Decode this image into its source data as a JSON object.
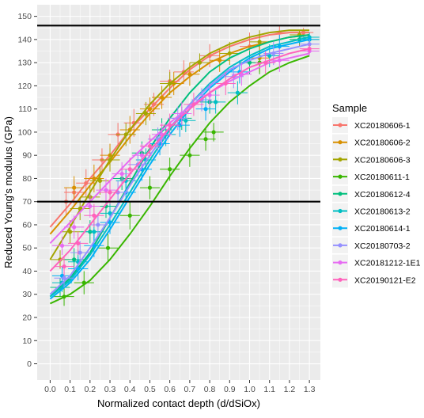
{
  "chart_data": {
    "type": "scatter",
    "title": "",
    "xlabel": "Normalized contact depth (d/dSiOx)",
    "ylabel": "Reduced Young's modulus (GPa)",
    "xlim": [
      -0.065,
      1.355
    ],
    "ylim": [
      -7,
      155
    ],
    "x_ticks": [
      "0.0",
      "0.1",
      "0.2",
      "0.3",
      "0.4",
      "0.5",
      "0.6",
      "0.7",
      "0.8",
      "0.9",
      "1.0",
      "1.1",
      "1.2",
      "1.3"
    ],
    "y_ticks": [
      "0",
      "10",
      "20",
      "30",
      "40",
      "50",
      "60",
      "70",
      "80",
      "90",
      "100",
      "110",
      "120",
      "130",
      "140",
      "150"
    ],
    "grid": true,
    "background": "#ebebeb",
    "grid_color": "#ffffff",
    "reference_lines": [
      70,
      146
    ],
    "legend": {
      "title": "Sample",
      "position": "right"
    },
    "series": [
      {
        "name": "XC20180606-1",
        "color": "#f8766d",
        "points": [
          [
            0.08,
            70,
            6
          ],
          [
            0.12,
            74,
            5
          ],
          [
            0.18,
            78,
            6
          ],
          [
            0.26,
            88,
            5
          ],
          [
            0.34,
            99,
            5
          ],
          [
            0.42,
            104,
            6
          ],
          [
            0.52,
            112,
            5
          ],
          [
            0.6,
            122,
            5
          ],
          [
            0.67,
            126,
            5
          ],
          [
            0.8,
            133,
            5
          ],
          [
            1.0,
            137,
            6
          ],
          [
            1.15,
            143,
            3
          ],
          [
            1.27,
            143,
            2
          ]
        ],
        "curve": [
          [
            0.0,
            59
          ],
          [
            0.1,
            69
          ],
          [
            0.2,
            80
          ],
          [
            0.3,
            90
          ],
          [
            0.4,
            101
          ],
          [
            0.5,
            110
          ],
          [
            0.6,
            119
          ],
          [
            0.7,
            127
          ],
          [
            0.8,
            133
          ],
          [
            0.9,
            137
          ],
          [
            1.0,
            140
          ],
          [
            1.1,
            142
          ],
          [
            1.2,
            143
          ],
          [
            1.3,
            143
          ]
        ]
      },
      {
        "name": "XC20180606-2",
        "color": "#d89000",
        "points": [
          [
            0.12,
            76,
            5
          ],
          [
            0.22,
            80,
            6
          ],
          [
            0.3,
            90,
            5
          ],
          [
            0.4,
            101,
            6
          ],
          [
            0.5,
            110,
            5
          ],
          [
            0.56,
            115,
            5
          ],
          [
            0.62,
            121,
            5
          ],
          [
            0.7,
            125,
            5
          ],
          [
            0.85,
            131,
            5
          ],
          [
            1.05,
            132,
            6
          ],
          [
            1.25,
            140,
            3
          ]
        ],
        "curve": [
          [
            0.0,
            56
          ],
          [
            0.1,
            66
          ],
          [
            0.2,
            77
          ],
          [
            0.3,
            87
          ],
          [
            0.4,
            98
          ],
          [
            0.5,
            108
          ],
          [
            0.6,
            117
          ],
          [
            0.7,
            124
          ],
          [
            0.8,
            130
          ],
          [
            0.9,
            134
          ],
          [
            1.0,
            137
          ],
          [
            1.1,
            139
          ],
          [
            1.2,
            141
          ],
          [
            1.3,
            142
          ]
        ]
      },
      {
        "name": "XC20180606-3",
        "color": "#a3a500",
        "points": [
          [
            0.05,
            45,
            4
          ],
          [
            0.1,
            57,
            5
          ],
          [
            0.15,
            67,
            5
          ],
          [
            0.2,
            72,
            5
          ],
          [
            0.25,
            79,
            6
          ],
          [
            0.3,
            88,
            5
          ],
          [
            0.38,
            99,
            5
          ],
          [
            0.48,
            108,
            5
          ],
          [
            0.6,
            121,
            5
          ],
          [
            0.75,
            130,
            4
          ],
          [
            0.9,
            134,
            5
          ],
          [
            1.05,
            139,
            5
          ],
          [
            1.25,
            142,
            2
          ]
        ],
        "curve": [
          [
            0.0,
            45
          ],
          [
            0.1,
            59
          ],
          [
            0.2,
            74
          ],
          [
            0.3,
            88
          ],
          [
            0.4,
            101
          ],
          [
            0.5,
            112
          ],
          [
            0.6,
            121
          ],
          [
            0.7,
            128
          ],
          [
            0.8,
            134
          ],
          [
            0.9,
            138
          ],
          [
            1.0,
            141
          ],
          [
            1.1,
            143
          ],
          [
            1.2,
            144
          ],
          [
            1.3,
            144
          ]
        ]
      },
      {
        "name": "XC20180611-1",
        "color": "#39b600",
        "points": [
          [
            0.07,
            29,
            4
          ],
          [
            0.17,
            35,
            5
          ],
          [
            0.29,
            50,
            6
          ],
          [
            0.4,
            64,
            6
          ],
          [
            0.5,
            76,
            5
          ],
          [
            0.6,
            84,
            5
          ],
          [
            0.7,
            90,
            5
          ],
          [
            0.78,
            97,
            5
          ],
          [
            0.82,
            100,
            4
          ],
          [
            1.05,
            130,
            5
          ],
          [
            1.3,
            140,
            2
          ]
        ],
        "curve": [
          [
            0.0,
            26
          ],
          [
            0.1,
            30
          ],
          [
            0.2,
            36
          ],
          [
            0.3,
            45
          ],
          [
            0.4,
            56
          ],
          [
            0.5,
            68
          ],
          [
            0.6,
            81
          ],
          [
            0.7,
            93
          ],
          [
            0.8,
            104
          ],
          [
            0.9,
            113
          ],
          [
            1.0,
            120
          ],
          [
            1.1,
            126
          ],
          [
            1.2,
            130
          ],
          [
            1.3,
            133
          ]
        ]
      },
      {
        "name": "XC20180612-4",
        "color": "#00bf7d",
        "points": [
          [
            0.05,
            33,
            4
          ],
          [
            0.12,
            45,
            5
          ],
          [
            0.2,
            57,
            5
          ],
          [
            0.28,
            68,
            5
          ],
          [
            0.36,
            80,
            5
          ],
          [
            0.46,
            91,
            5
          ],
          [
            0.56,
            101,
            5
          ],
          [
            0.66,
            106,
            5
          ],
          [
            0.8,
            113,
            5
          ],
          [
            1.0,
            130,
            5
          ],
          [
            1.25,
            140,
            2
          ]
        ],
        "curve": [
          [
            0.0,
            29
          ],
          [
            0.1,
            37
          ],
          [
            0.2,
            48
          ],
          [
            0.3,
            63
          ],
          [
            0.4,
            78
          ],
          [
            0.5,
            93
          ],
          [
            0.6,
            106
          ],
          [
            0.7,
            117
          ],
          [
            0.8,
            126
          ],
          [
            0.9,
            132
          ],
          [
            1.0,
            136
          ],
          [
            1.1,
            139
          ],
          [
            1.2,
            141
          ],
          [
            1.3,
            142
          ]
        ]
      },
      {
        "name": "XC20180613-2",
        "color": "#00bfc4",
        "points": [
          [
            0.06,
            35,
            4
          ],
          [
            0.14,
            44,
            5
          ],
          [
            0.22,
            57,
            5
          ],
          [
            0.3,
            65,
            5
          ],
          [
            0.38,
            79,
            5
          ],
          [
            0.48,
            88,
            5
          ],
          [
            0.58,
            99,
            5
          ],
          [
            0.68,
            105,
            5
          ],
          [
            0.83,
            113,
            5
          ],
          [
            0.94,
            117,
            5
          ],
          [
            1.1,
            133,
            5
          ],
          [
            1.3,
            141,
            2
          ]
        ],
        "curve": [
          [
            0.0,
            29
          ],
          [
            0.1,
            36
          ],
          [
            0.2,
            47
          ],
          [
            0.3,
            60
          ],
          [
            0.4,
            74
          ],
          [
            0.5,
            88
          ],
          [
            0.6,
            101
          ],
          [
            0.7,
            112
          ],
          [
            0.8,
            121
          ],
          [
            0.9,
            128
          ],
          [
            1.0,
            133
          ],
          [
            1.1,
            137
          ],
          [
            1.2,
            139
          ],
          [
            1.3,
            141
          ]
        ]
      },
      {
        "name": "XC20180614-1",
        "color": "#00b0f6",
        "points": [
          [
            0.06,
            38,
            4
          ],
          [
            0.14,
            41,
            5
          ],
          [
            0.22,
            51,
            5
          ],
          [
            0.3,
            61,
            5
          ],
          [
            0.38,
            74,
            5
          ],
          [
            0.46,
            84,
            5
          ],
          [
            0.55,
            95,
            5
          ],
          [
            0.65,
            103,
            5
          ],
          [
            0.78,
            110,
            5
          ],
          [
            0.95,
            126,
            5
          ],
          [
            1.15,
            137,
            5
          ],
          [
            1.3,
            140,
            2
          ]
        ],
        "curve": [
          [
            0.0,
            28
          ],
          [
            0.1,
            35
          ],
          [
            0.2,
            45
          ],
          [
            0.3,
            58
          ],
          [
            0.4,
            72
          ],
          [
            0.5,
            86
          ],
          [
            0.6,
            99
          ],
          [
            0.7,
            110
          ],
          [
            0.8,
            119
          ],
          [
            0.9,
            126
          ],
          [
            1.0,
            132
          ],
          [
            1.1,
            136
          ],
          [
            1.2,
            138
          ],
          [
            1.3,
            140
          ]
        ]
      },
      {
        "name": "XC20180703-2",
        "color": "#9590ff",
        "points": [
          [
            0.07,
            37,
            4
          ],
          [
            0.15,
            48,
            5
          ],
          [
            0.24,
            60,
            5
          ],
          [
            0.34,
            74,
            5
          ],
          [
            0.44,
            86,
            5
          ],
          [
            0.54,
            97,
            5
          ],
          [
            0.64,
            106,
            5
          ],
          [
            0.76,
            114,
            5
          ],
          [
            0.92,
            124,
            5
          ],
          [
            1.12,
            134,
            5
          ],
          [
            1.3,
            138,
            2
          ]
        ],
        "curve": [
          [
            0.0,
            30
          ],
          [
            0.1,
            38
          ],
          [
            0.2,
            50
          ],
          [
            0.3,
            63
          ],
          [
            0.4,
            77
          ],
          [
            0.5,
            90
          ],
          [
            0.6,
            102
          ],
          [
            0.7,
            112
          ],
          [
            0.8,
            120
          ],
          [
            0.9,
            127
          ],
          [
            1.0,
            131
          ],
          [
            1.1,
            134
          ],
          [
            1.2,
            136
          ],
          [
            1.3,
            138
          ]
        ]
      },
      {
        "name": "XC20181212-1E1",
        "color": "#e76bf3",
        "points": [
          [
            0.06,
            51,
            4
          ],
          [
            0.12,
            59,
            5
          ],
          [
            0.2,
            68,
            5
          ],
          [
            0.28,
            75,
            5
          ],
          [
            0.36,
            82,
            5
          ],
          [
            0.46,
            90,
            5
          ],
          [
            0.56,
            99,
            5
          ],
          [
            0.66,
            108,
            5
          ],
          [
            0.8,
            116,
            5
          ],
          [
            0.96,
            125,
            5
          ],
          [
            1.15,
            131,
            5
          ],
          [
            1.3,
            135,
            2
          ]
        ],
        "curve": [
          [
            0.0,
            52
          ],
          [
            0.1,
            61
          ],
          [
            0.2,
            70
          ],
          [
            0.3,
            79
          ],
          [
            0.4,
            88
          ],
          [
            0.5,
            96
          ],
          [
            0.6,
            104
          ],
          [
            0.7,
            111
          ],
          [
            0.8,
            117
          ],
          [
            0.9,
            122
          ],
          [
            1.0,
            126
          ],
          [
            1.1,
            130
          ],
          [
            1.2,
            132
          ],
          [
            1.3,
            134
          ]
        ]
      },
      {
        "name": "XC20190121-E2",
        "color": "#ff62bc",
        "points": [
          [
            0.07,
            42,
            4
          ],
          [
            0.14,
            52,
            5
          ],
          [
            0.22,
            64,
            5
          ],
          [
            0.3,
            74,
            5
          ],
          [
            0.4,
            84,
            5
          ],
          [
            0.5,
            94,
            5
          ],
          [
            0.6,
            103,
            5
          ],
          [
            0.72,
            112,
            5
          ],
          [
            0.88,
            121,
            5
          ],
          [
            1.08,
            130,
            5
          ],
          [
            1.3,
            136,
            2
          ]
        ],
        "curve": [
          [
            0.0,
            40
          ],
          [
            0.1,
            49
          ],
          [
            0.2,
            60
          ],
          [
            0.3,
            71
          ],
          [
            0.4,
            82
          ],
          [
            0.5,
            92
          ],
          [
            0.6,
            102
          ],
          [
            0.7,
            110
          ],
          [
            0.8,
            117
          ],
          [
            0.9,
            123
          ],
          [
            1.0,
            128
          ],
          [
            1.1,
            131
          ],
          [
            1.2,
            134
          ],
          [
            1.3,
            136
          ]
        ]
      }
    ]
  }
}
